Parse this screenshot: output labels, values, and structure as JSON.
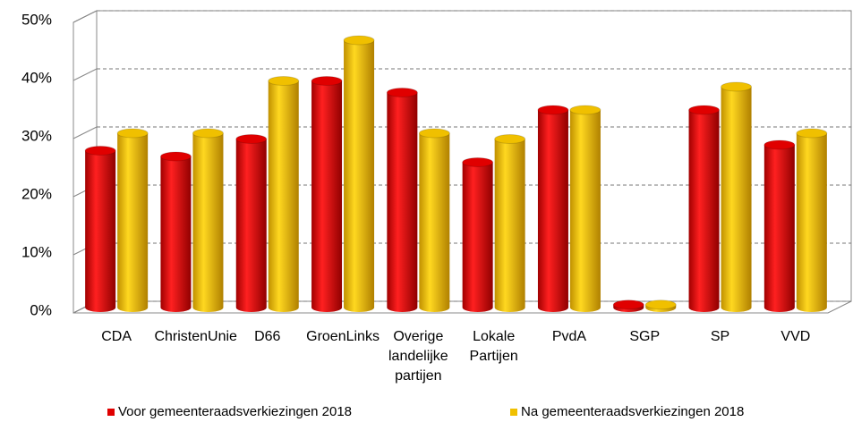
{
  "chart_data": {
    "type": "bar",
    "categories": [
      "CDA",
      "ChristenUnie",
      "D66",
      "GroenLinks",
      "Overige landelijke partijen",
      "Lokale Partijen",
      "PvdA",
      "SGP",
      "SP",
      "VVD"
    ],
    "series": [
      {
        "name": "Voor gemeenteraadsverkiezingen 2018",
        "color": "#e00000",
        "values": [
          27,
          26,
          29,
          39,
          37,
          25,
          34,
          0.5,
          34,
          28
        ]
      },
      {
        "name": "Na gemeenteraadsverkiezingen 2018",
        "color": "#f0c000",
        "values": [
          30,
          30,
          39,
          46,
          30,
          29,
          34,
          0.5,
          38,
          30
        ]
      }
    ],
    "ylim": [
      0,
      50
    ],
    "yticks": [
      {
        "value": 0,
        "label": "0%"
      },
      {
        "value": 10,
        "label": "10%"
      },
      {
        "value": 20,
        "label": "20%"
      },
      {
        "value": 30,
        "label": "30%"
      },
      {
        "value": 40,
        "label": "40%"
      },
      {
        "value": 50,
        "label": "50%"
      }
    ],
    "grid": true
  }
}
